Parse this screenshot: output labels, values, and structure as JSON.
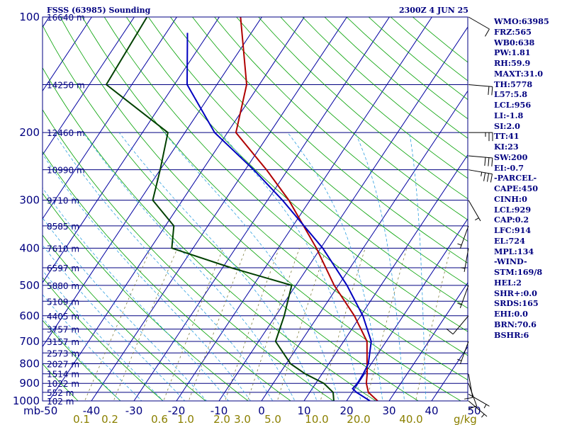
{
  "header": {
    "station": "FSSS (63985) Sounding",
    "time": "2300Z  4 JUN 25"
  },
  "indices": [
    "WMO:63985",
    "FRZ:565",
    "WB0:638",
    "PW:1.81",
    "RH:59.9",
    "MAXT:31.0",
    "TH:5778",
    "L57:5.8",
    "LCL:956",
    "LI:-1.8",
    "SI:2.0",
    "TT:41",
    "KI:23",
    "SW:200",
    "EI:-0.7",
    "-PARCEL-",
    "CAPE:450",
    "CINH:0",
    "LCL:929",
    "CAP:0.2",
    "LFC:914",
    "EL:724",
    "MPL:134",
    "-WIND-",
    "STM:169/8",
    "HEL:2",
    "SHR+:0.0",
    "SRDS:165",
    "EHI:0.0",
    "BRN:70.6",
    "BSHR:6"
  ],
  "chart_data": {
    "type": "line",
    "title": "FSSS (63985) Sounding",
    "subtitle": "2300Z  4 JUN 25",
    "pressure_axis": {
      "label": "mb",
      "scale": "log",
      "ticks": [
        100,
        200,
        300,
        400,
        500,
        600,
        700,
        800,
        900,
        1000
      ]
    },
    "temperature_axis": {
      "ticks": [
        -50,
        -40,
        -30,
        -20,
        -10,
        0,
        10,
        20,
        30,
        40,
        50
      ],
      "skewed": true
    },
    "mixing_ratio_axis": {
      "unit": "g/kg",
      "ticks": [
        "0.1",
        "0.2",
        "0.6",
        "1.0",
        "2.0",
        "3.0",
        "5.0",
        "10.0",
        "20.0",
        "40.0"
      ]
    },
    "height_labels": [
      {
        "p": 100,
        "h": "16640 m"
      },
      {
        "p": 150,
        "h": "14250 m"
      },
      {
        "p": 200,
        "h": "12460 m"
      },
      {
        "p": 250,
        "h": "10990 m"
      },
      {
        "p": 300,
        "h": "9710 m"
      },
      {
        "p": 350,
        "h": "8585 m"
      },
      {
        "p": 400,
        "h": "7610 m"
      },
      {
        "p": 450,
        "h": "6597 m"
      },
      {
        "p": 500,
        "h": "5880 m"
      },
      {
        "p": 550,
        "h": "5109 m"
      },
      {
        "p": 600,
        "h": "4405 m"
      },
      {
        "p": 650,
        "h": "3757 m"
      },
      {
        "p": 700,
        "h": "3157 m"
      },
      {
        "p": 750,
        "h": "2573 m"
      },
      {
        "p": 800,
        "h": "2027 m"
      },
      {
        "p": 850,
        "h": "1514 m"
      },
      {
        "p": 900,
        "h": "1022 m"
      },
      {
        "p": 950,
        "h": "552 m"
      },
      {
        "p": 1000,
        "h": "102 m"
      }
    ],
    "series": [
      {
        "role": "temperature",
        "color": "#b00000",
        "points": [
          [
            1000,
            27.3
          ],
          [
            950,
            23.8
          ],
          [
            900,
            21.9
          ],
          [
            850,
            20.6
          ],
          [
            800,
            19.0
          ],
          [
            700,
            15.5
          ],
          [
            600,
            8.5
          ],
          [
            500,
            -1.0
          ],
          [
            400,
            -11.0
          ],
          [
            300,
            -25.0
          ],
          [
            250,
            -35.0
          ],
          [
            200,
            -48.0
          ],
          [
            150,
            -53.0
          ],
          [
            100,
            -65.0
          ]
        ]
      },
      {
        "role": "dewpoint",
        "color": "#004000",
        "points": [
          [
            1000,
            17.0
          ],
          [
            950,
            15.5
          ],
          [
            900,
            11.9
          ],
          [
            850,
            6.0
          ],
          [
            800,
            1.0
          ],
          [
            700,
            -6.0
          ],
          [
            600,
            -8.0
          ],
          [
            500,
            -11.0
          ],
          [
            450,
            -28.0
          ],
          [
            400,
            -45.0
          ],
          [
            350,
            -48.0
          ],
          [
            300,
            -57.0
          ],
          [
            250,
            -60.0
          ],
          [
            200,
            -64.0
          ],
          [
            150,
            -86.0
          ],
          [
            100,
            -87.0
          ]
        ]
      },
      {
        "role": "parcel",
        "color": "#0000c0",
        "points": [
          [
            1000,
            25.5
          ],
          [
            950,
            21.0
          ],
          [
            929,
            19.5
          ],
          [
            900,
            19.8
          ],
          [
            850,
            19.7
          ],
          [
            800,
            19.3
          ],
          [
            700,
            16.5
          ],
          [
            600,
            10.5
          ],
          [
            500,
            2.0
          ],
          [
            400,
            -9.5
          ],
          [
            300,
            -26.5
          ],
          [
            250,
            -38.0
          ],
          [
            200,
            -53.0
          ],
          [
            150,
            -67.0
          ],
          [
            110,
            -75.0
          ]
        ]
      }
    ],
    "wind_barbs": [
      {
        "p": 1000,
        "dir": 310,
        "spd": 5
      },
      {
        "p": 960,
        "dir": 300,
        "spd": 5
      },
      {
        "p": 900,
        "dir": 340,
        "spd": 10
      },
      {
        "p": 850,
        "dir": 350,
        "spd": 10
      },
      {
        "p": 700,
        "dir": 20,
        "spd": 5
      },
      {
        "p": 600,
        "dir": 40,
        "spd": 10
      },
      {
        "p": 500,
        "dir": 20,
        "spd": 5
      },
      {
        "p": 400,
        "dir": 10,
        "spd": 5
      },
      {
        "p": 350,
        "dir": 20,
        "spd": 5
      },
      {
        "p": 300,
        "dir": 330,
        "spd": 5
      },
      {
        "p": 250,
        "dir": 280,
        "spd": 35
      },
      {
        "p": 230,
        "dir": 275,
        "spd": 30
      },
      {
        "p": 200,
        "dir": 270,
        "spd": 25
      },
      {
        "p": 150,
        "dir": 275,
        "spd": 20
      },
      {
        "p": 100,
        "dir": 300,
        "spd": 10
      }
    ]
  }
}
